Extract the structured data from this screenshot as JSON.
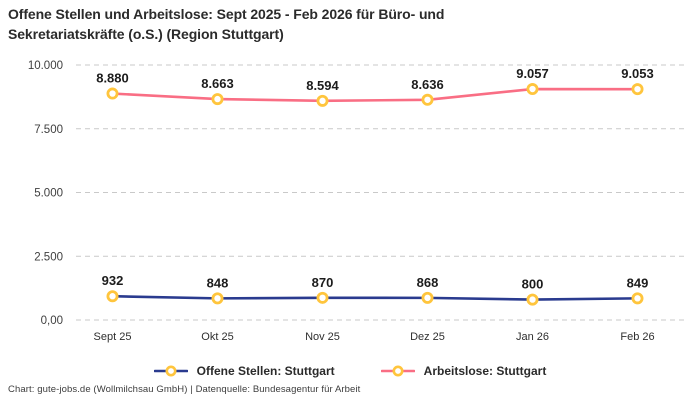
{
  "title": {
    "line1": "Offene Stellen und Arbeitslose: Sept 2025 - Feb 2026 für Büro- und",
    "line2": "Sekretariatskräfte (o.S.) (Region Stuttgart)"
  },
  "footer": "Chart: gute-jobs.de (Wollmilchsau GmbH) | Datenquelle: Bundesagentur für Arbeit",
  "colors": {
    "open_positions_line": "#2a3b8f",
    "unemployed_line": "#f96e84",
    "marker_ring": "#ffc53d",
    "marker_fill": "#ffffff",
    "gridline": "#c9c9c9",
    "data_label": "#1c1c1c",
    "axis_label": "#3f3f3f"
  },
  "chart_data": {
    "type": "line",
    "title": "Offene Stellen und Arbeitslose: Sept 2025 - Feb 2026 für Büro- und Sekretariatskräfte (o.S.) (Region Stuttgart)",
    "categories": [
      "Sept 25",
      "Okt 25",
      "Nov 25",
      "Dez 25",
      "Jan 26",
      "Feb 26"
    ],
    "series": [
      {
        "name": "Offene Stellen: Stuttgart",
        "values": [
          932,
          848,
          870,
          868,
          800,
          849
        ],
        "labels": [
          "932",
          "848",
          "870",
          "868",
          "800",
          "849"
        ],
        "color": "#2a3b8f"
      },
      {
        "name": "Arbeitslose: Stuttgart",
        "values": [
          8880,
          8663,
          8594,
          8636,
          9057,
          9053
        ],
        "labels": [
          "8.880",
          "8.663",
          "8.594",
          "8.636",
          "9.057",
          "9.053"
        ],
        "color": "#f96e84"
      }
    ],
    "ylim": [
      0,
      10000
    ],
    "yticks": [
      {
        "value": 0,
        "label": "0,00"
      },
      {
        "value": 2500,
        "label": "2.500"
      },
      {
        "value": 5000,
        "label": "5.000"
      },
      {
        "value": 7500,
        "label": "7.500"
      },
      {
        "value": 10000,
        "label": "10.000"
      }
    ],
    "grid": "horizontal-dashed",
    "legend_position": "bottom",
    "marker_style": "circle-yellow-ring-white-fill"
  }
}
